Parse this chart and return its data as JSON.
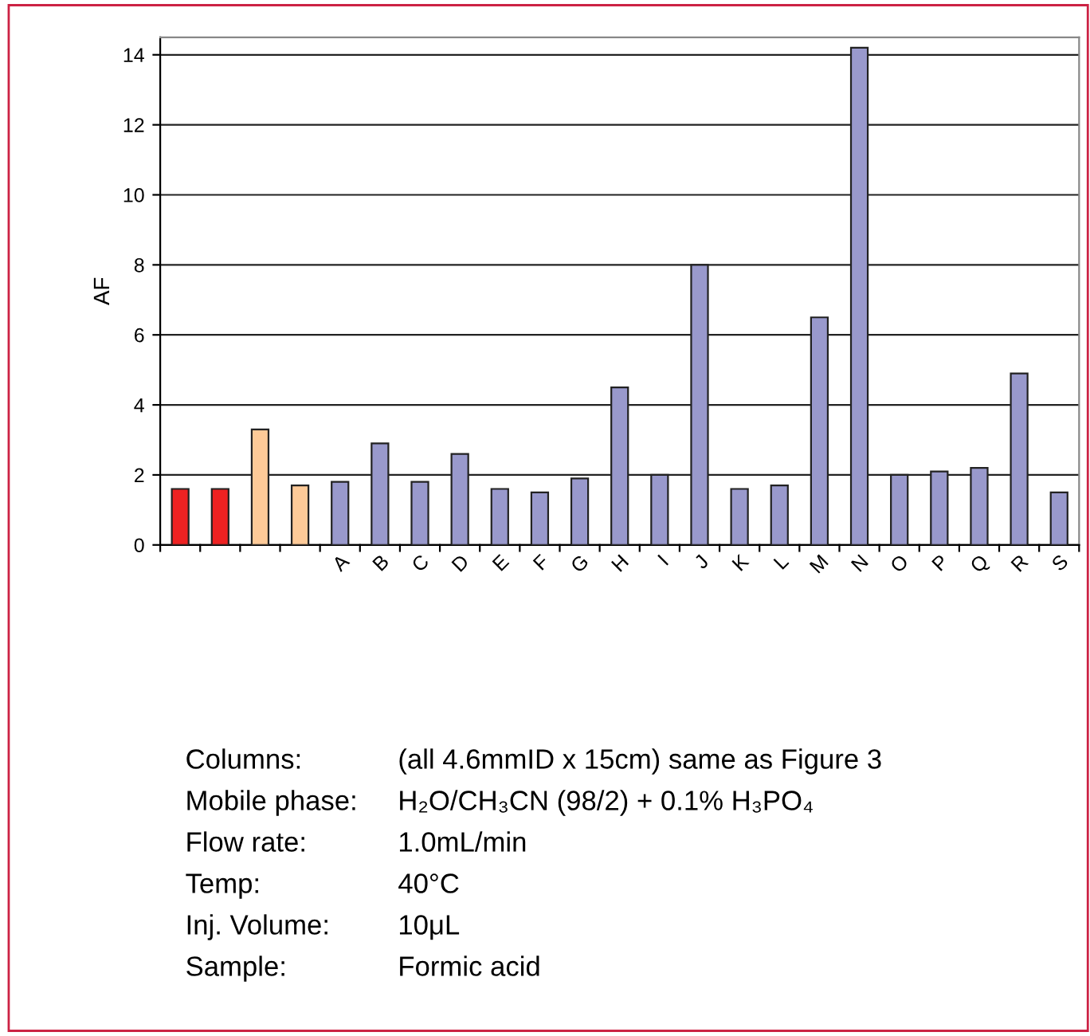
{
  "chart_data": {
    "type": "bar",
    "ylabel": "AF",
    "categories": [
      null,
      null,
      null,
      null,
      "A",
      "B",
      "C",
      "D",
      "E",
      "F",
      "G",
      "H",
      "I",
      "J",
      "K",
      "L",
      "M",
      "N",
      "O",
      "P",
      "Q",
      "R",
      "S"
    ],
    "values": [
      1.6,
      1.6,
      3.3,
      1.7,
      1.8,
      2.9,
      1.8,
      2.6,
      1.6,
      1.5,
      1.9,
      4.5,
      2.0,
      8.0,
      1.6,
      1.7,
      6.5,
      14.2,
      2.0,
      2.1,
      2.2,
      4.9,
      1.5
    ],
    "colors": [
      "#ee2222",
      "#ee2222",
      "#fdca98",
      "#fdca98",
      "#9999cc",
      "#9999cc",
      "#9999cc",
      "#9999cc",
      "#9999cc",
      "#9999cc",
      "#9999cc",
      "#9999cc",
      "#9999cc",
      "#9999cc",
      "#9999cc",
      "#9999cc",
      "#9999cc",
      "#9999cc",
      "#9999cc",
      "#9999cc",
      "#9999cc",
      "#9999cc",
      "#9999cc"
    ],
    "ylim": [
      0,
      14.5
    ],
    "yticks": [
      0,
      2,
      4,
      6,
      8,
      10,
      12,
      14
    ],
    "grid": "y",
    "annotations": [
      "Columns:",
      "(all 4.6mmID x 15cm) same as Figure 3",
      "Mobile phase:",
      "H₂O/CH₃CN (98/2) + 0.1% H₃PO₄",
      "Flow rate:",
      "1.0mL/min",
      "Temp:",
      "40°C",
      "Inj. Volume:",
      "10μL",
      "Sample:",
      "Formic acid"
    ]
  }
}
